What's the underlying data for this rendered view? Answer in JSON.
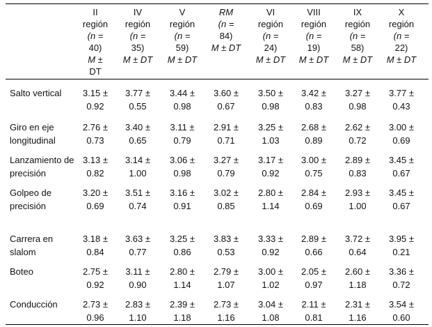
{
  "table": {
    "columns": [
      [
        "II",
        "región",
        "(n =",
        "40)",
        "M ±",
        "DT"
      ],
      [
        "IV",
        "región",
        "(n =",
        "35)",
        "M ± DT"
      ],
      [
        "V",
        "región",
        "(n =",
        "59)",
        "M ± DT"
      ],
      [
        "RM",
        "(n =",
        "84)",
        "M ± DT"
      ],
      [
        "VI",
        "región",
        "(n =",
        "24)",
        "M ± DT"
      ],
      [
        "VIII",
        "región",
        "(n =",
        "19)",
        "M ± DT"
      ],
      [
        "IX",
        "región",
        "(n =",
        "58)",
        "M ± DT"
      ],
      [
        "X",
        "región",
        "(n =",
        "22)",
        "M ± DT"
      ]
    ],
    "rows": [
      {
        "label": "Salto vertical",
        "cells": [
          "3.15 ±",
          "0.92",
          "3.77 ±",
          "0.55",
          "3.44 ±",
          "0.98",
          "3.60 ±",
          "0.67",
          "3.50 ±",
          "0.98",
          "3.42 ±",
          "0.83",
          "3.27 ±",
          "0.98",
          "3.77 ±",
          "0.43"
        ]
      },
      {
        "label": "Giro en eje longitudinal",
        "cells": [
          "2.76 ±",
          "0.73",
          "3.40 ±",
          "0.65",
          "3.11 ±",
          "0.79",
          "2.91 ±",
          "0.71",
          "3.25 ±",
          "1.03",
          "2.68 ±",
          "0.89",
          "2.62 ±",
          "0.72",
          "3.00 ±",
          "0.69"
        ]
      },
      {
        "label": "Lanzamiento de precisión",
        "cells": [
          "3.13 ±",
          "0.82",
          "3.14 ±",
          "1.00",
          "3.06 ±",
          "0.98",
          "3.27 ±",
          "0.79",
          "3.17 ±",
          "0.92",
          "3.00 ±",
          "0.75",
          "2.89 ±",
          "0.83",
          "3.45 ±",
          "0.67"
        ]
      },
      {
        "label": "Golpeo de precisión",
        "cells": [
          "3.20 ±",
          "0.69",
          "3.51 ±",
          "0.74",
          "3.16 ±",
          "0.91",
          "3.02 ±",
          "0.85",
          "2.80 ±",
          "1.14",
          "2.84 ±",
          "0.69",
          "2.93 ±",
          "1.00",
          "3.45 ±",
          "0.67"
        ]
      },
      {
        "label": "Carrera en slalom",
        "cells": [
          "3.18 ±",
          "0.84",
          "3.63 ±",
          "0.77",
          "3.25 ±",
          "0.86",
          "3.83 ±",
          "0.53",
          "3.33 ±",
          "0.92",
          "2.89 ±",
          "0.66",
          "3.72 ±",
          "0.64",
          "3.95 ±",
          "0.21"
        ]
      },
      {
        "label": "Boteo",
        "cells": [
          "2.75 ±",
          "0.92",
          "3.11 ±",
          "0.90",
          "2.80 ±",
          "1.14",
          "2.79 ±",
          "1.07",
          "3.00 ±",
          "1.02",
          "2.05 ±",
          "0.97",
          "2.60 ±",
          "1.18",
          "3.36 ±",
          "0.72"
        ]
      },
      {
        "label": "Conducción",
        "cells": [
          "2.73 ±",
          "0.96",
          "2.83 ±",
          "1.10",
          "2.39 ±",
          "1.18",
          "2.73 ±",
          "1.16",
          "3.04 ±",
          "1.08",
          "2.11 ±",
          "0.81",
          "2.31 ±",
          "1.16",
          "3.54 ±",
          "0.60"
        ]
      }
    ]
  }
}
